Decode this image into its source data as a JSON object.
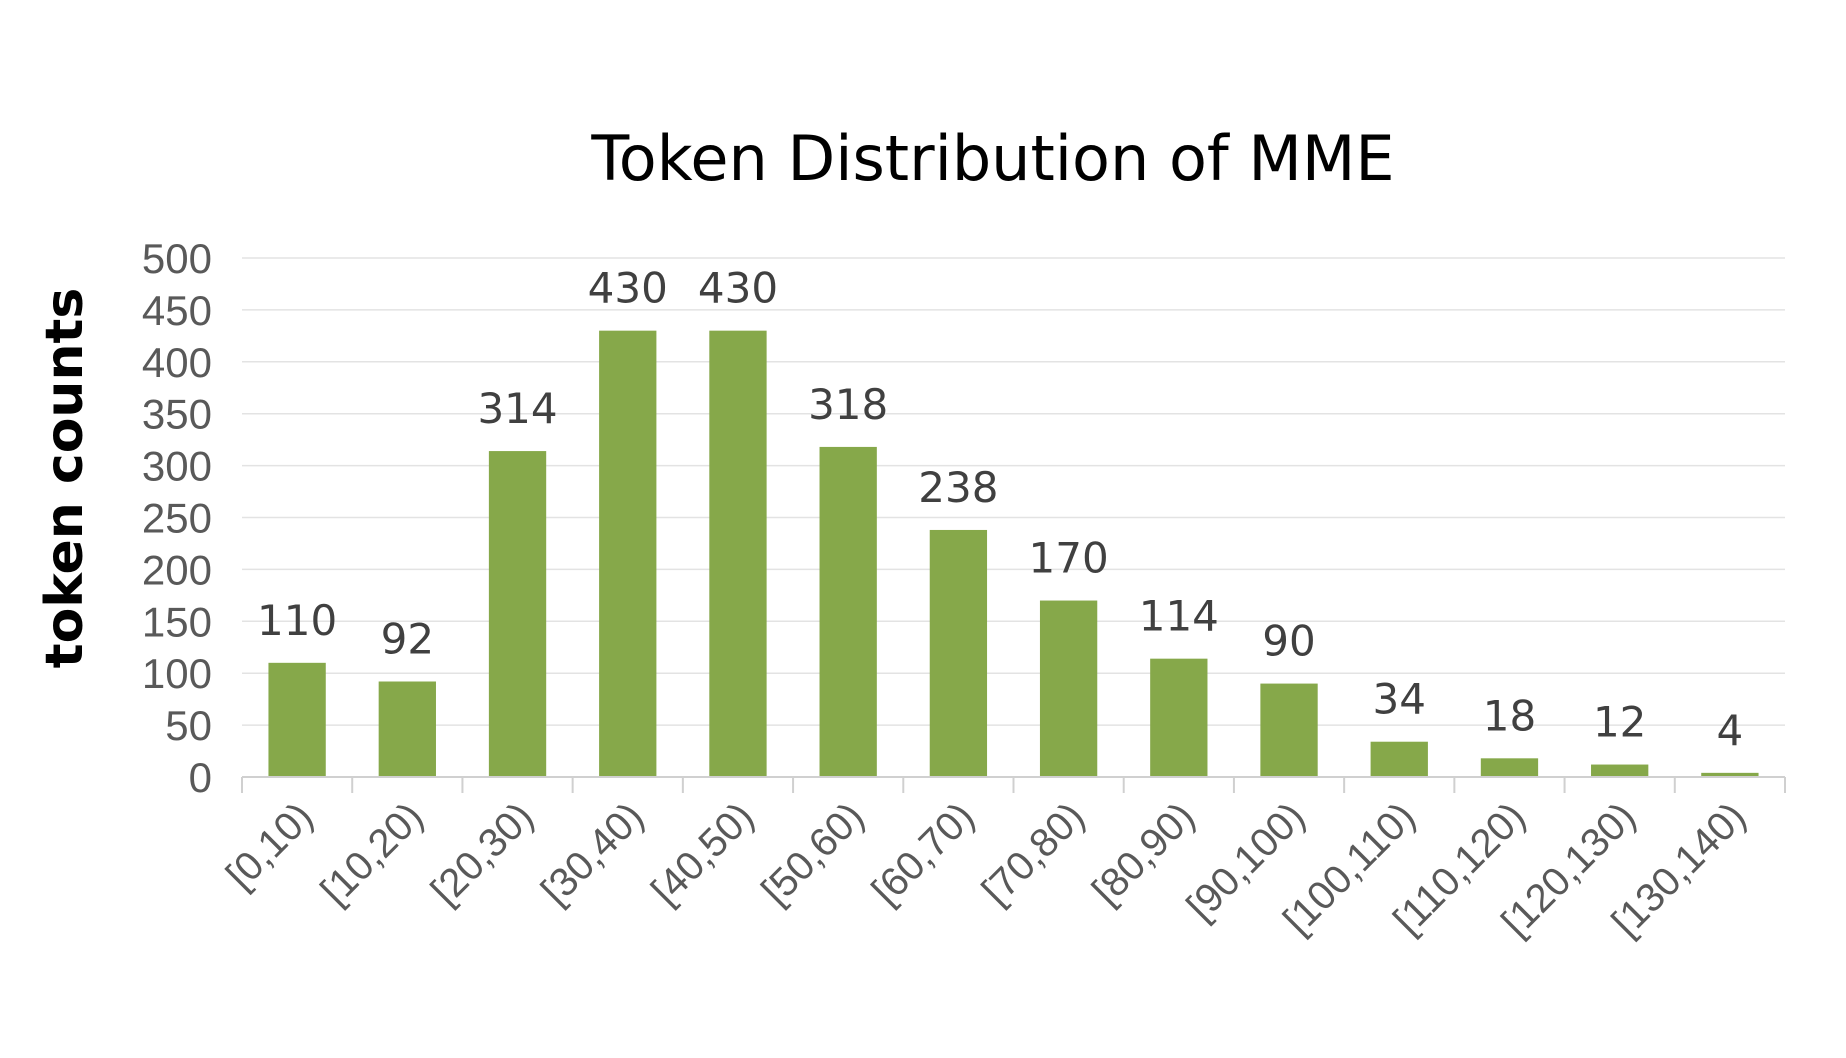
{
  "colors": {
    "bar": "#86a84a",
    "grid": "#e3e3e3",
    "tick_text": "#595959",
    "label_text": "#404040"
  },
  "chart_data": {
    "type": "bar",
    "title": "Token Distribution of MME",
    "xlabel": "",
    "ylabel": "token counts",
    "ylim": [
      0,
      500
    ],
    "yticks": [
      "0",
      "50",
      "100",
      "150",
      "200",
      "250",
      "300",
      "350",
      "400",
      "450",
      "500"
    ],
    "grid": true,
    "categories": [
      "[0,10)",
      "[10,20)",
      "[20,30)",
      "[30,40)",
      "[40,50)",
      "[50,60)",
      "[60,70)",
      "[70,80)",
      "[80,90)",
      "[90,100)",
      "[100,110)",
      "[110,120)",
      "[120,130)",
      "[130,140)"
    ],
    "values": [
      110,
      92,
      314,
      430,
      430,
      318,
      238,
      170,
      114,
      90,
      34,
      18,
      12,
      4
    ],
    "data_labels": [
      "110",
      "92",
      "314",
      "430",
      "430",
      "318",
      "238",
      "170",
      "114",
      "90",
      "34",
      "18",
      "12",
      "4"
    ]
  }
}
